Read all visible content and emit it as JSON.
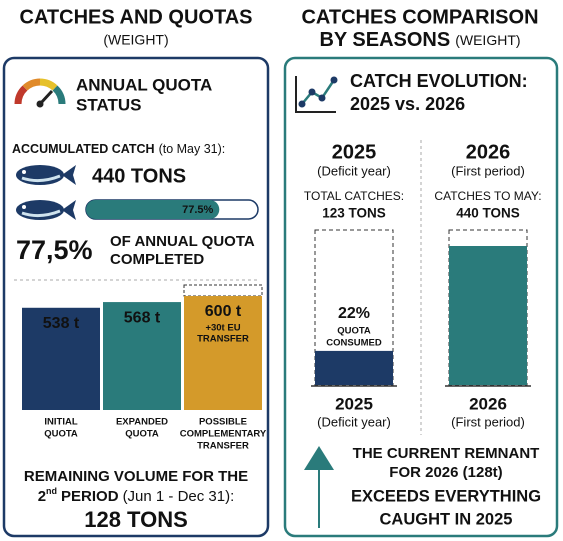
{
  "left_title": {
    "line1": "CATCHES AND QUOTAS",
    "note": "(WEIGHT)"
  },
  "right_title": {
    "line1": "CATCHES COMPARISON",
    "line2": "BY SEASONS",
    "note": "(WEIGHT)"
  },
  "quota_status": {
    "heading": [
      "ANNUAL QUOTA",
      "STATUS"
    ],
    "catch_label": "ACCUMULATED CATCH",
    "catch_period": "(to May 31):",
    "catch_total": "440 TONS",
    "progress": {
      "value": 77.5,
      "label": "77.5%"
    },
    "completed_value": "77,5%",
    "completed_text": [
      "OF ANNUAL QUOTA",
      "COMPLETED"
    ],
    "bars": [
      {
        "value": 538,
        "label": "538 t",
        "name": [
          "INITIAL",
          "QUOTA"
        ],
        "color": "#1d3a66"
      },
      {
        "value": 568,
        "label": "568 t",
        "name": [
          "EXPANDED",
          "QUOTA"
        ],
        "color": "#2a7b7b"
      },
      {
        "value": 600,
        "label": "600 t",
        "extra": [
          "+30t EU",
          "TRANSFER"
        ],
        "name": [
          "POSSIBLE",
          "COMPLEMENTARY",
          "TRANSFER"
        ],
        "color": "#d49a2a"
      }
    ],
    "remaining": {
      "line1": "REMAINING VOLUME FOR THE",
      "ordinal": "2",
      "suffix": "nd",
      "period": "PERIOD",
      "dates": "(Jun 1 - Dec 31):",
      "total": "128 TONS"
    }
  },
  "evolution": {
    "heading": [
      "CATCH EVOLUTION:",
      "2025 vs. 2026"
    ],
    "seasons": [
      {
        "year": "2025",
        "note": "(Deficit year)",
        "metric": "TOTAL CATCHES:",
        "total": "123 TONS",
        "consumed": {
          "value": 22,
          "label": "22%",
          "text": [
            "QUOTA",
            "CONSUMED"
          ]
        }
      },
      {
        "year": "2026",
        "note": "(First period)",
        "metric": "CATCHES TO MAY:",
        "total": "440 TONS"
      }
    ],
    "conclusion": [
      "THE CURRENT REMNANT",
      "FOR 2026 (128t)",
      "EXCEEDS EVERYTHING",
      "CAUGHT IN 2025"
    ]
  }
}
